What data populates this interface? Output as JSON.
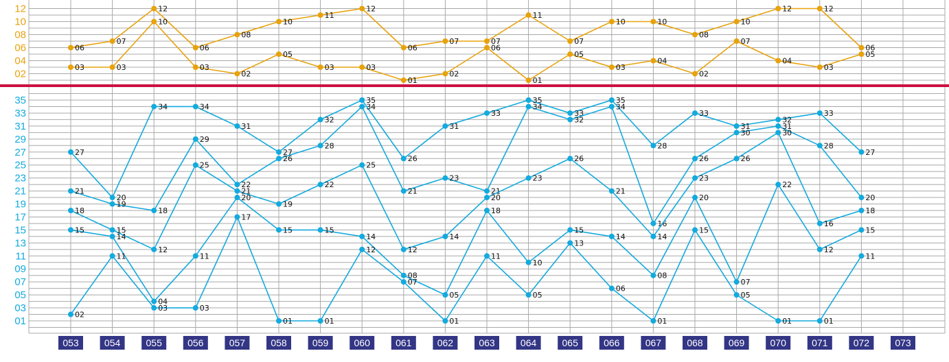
{
  "chart_data": [
    {
      "type": "line",
      "name_hint": "upper-panel",
      "categories": [
        "053",
        "054",
        "055",
        "056",
        "057",
        "058",
        "059",
        "060",
        "061",
        "062",
        "063",
        "064",
        "065",
        "066",
        "067",
        "068",
        "069",
        "070",
        "071",
        "072",
        "073"
      ],
      "yticks": [
        "02",
        "04",
        "06",
        "08",
        "10",
        "12"
      ],
      "ylim": [
        1,
        12.5
      ],
      "grid": true,
      "colors": {
        "line": "#e8a20c",
        "tick": "#e8a20c"
      },
      "series": [
        {
          "values": [
            6,
            7,
            12,
            6,
            8,
            10,
            11,
            12,
            6,
            7,
            7,
            11,
            7,
            10,
            10,
            8,
            10,
            12,
            12,
            6,
            null
          ]
        },
        {
          "values": [
            3,
            3,
            10,
            3,
            2,
            5,
            3,
            3,
            1,
            2,
            6,
            1,
            5,
            3,
            4,
            2,
            7,
            4,
            3,
            5,
            null
          ]
        }
      ]
    },
    {
      "type": "line",
      "name_hint": "lower-panel",
      "categories": [
        "053",
        "054",
        "055",
        "056",
        "057",
        "058",
        "059",
        "060",
        "061",
        "062",
        "063",
        "064",
        "065",
        "066",
        "067",
        "068",
        "069",
        "070",
        "071",
        "072",
        "073"
      ],
      "yticks": [
        "01",
        "03",
        "05",
        "07",
        "09",
        "11",
        "13",
        "15",
        "17",
        "19",
        "21",
        "23",
        "25",
        "27",
        "29",
        "31",
        "33",
        "35"
      ],
      "ylim": [
        0,
        36
      ],
      "grid": true,
      "colors": {
        "line": "#13aade",
        "tick": "#13aade"
      },
      "series": [
        {
          "values": [
            27,
            20,
            34,
            34,
            31,
            27,
            32,
            35,
            26,
            31,
            33,
            35,
            33,
            35,
            28,
            33,
            31,
            32,
            33,
            27,
            null
          ]
        },
        {
          "values": [
            21,
            19,
            18,
            29,
            22,
            26,
            28,
            34,
            21,
            23,
            21,
            34,
            32,
            34,
            16,
            26,
            30,
            31,
            28,
            20,
            null
          ]
        },
        {
          "values": [
            18,
            15,
            12,
            25,
            21,
            19,
            22,
            25,
            12,
            14,
            20,
            23,
            26,
            21,
            14,
            23,
            26,
            30,
            16,
            18,
            null
          ]
        },
        {
          "values": [
            15,
            14,
            4,
            11,
            20,
            15,
            15,
            14,
            8,
            5,
            18,
            10,
            15,
            14,
            8,
            20,
            7,
            22,
            12,
            15,
            null
          ]
        },
        {
          "values": [
            2,
            11,
            3,
            3,
            17,
            1,
            1,
            12,
            7,
            1,
            11,
            5,
            13,
            6,
            1,
            15,
            5,
            1,
            1,
            11,
            null
          ]
        }
      ]
    }
  ],
  "colors": {
    "divider": "#cc1140",
    "grid": "#a8a8a8",
    "xlabel_bg": "#333585",
    "xlabel_text": "#ffffff"
  }
}
